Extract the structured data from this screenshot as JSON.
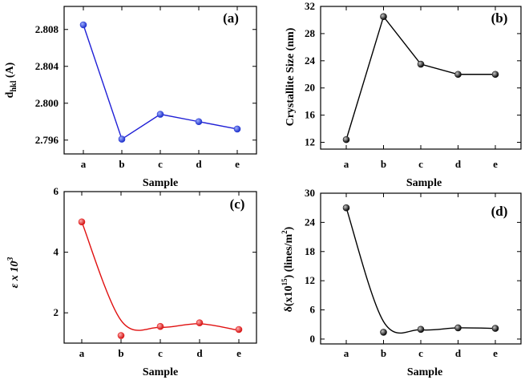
{
  "chart_data": [
    {
      "type": "line",
      "panel_label": "(a)",
      "categories": [
        "a",
        "b",
        "c",
        "d",
        "e"
      ],
      "values": [
        2.8085,
        2.7961,
        2.7988,
        2.798,
        2.7972
      ],
      "xlabel": "Sample",
      "ylabel_main": "d",
      "ylabel_sub": "hkl",
      "ylabel_unit": " (A)",
      "ylim": [
        2.7945,
        2.8105
      ],
      "yticks": [
        2.796,
        2.8,
        2.804,
        2.808
      ],
      "ytick_labels": [
        "2.796",
        "2.800",
        "2.804",
        "2.808"
      ],
      "line_color": "#1f1fd6",
      "marker_color": "#2a3bd8",
      "curve": "straight"
    },
    {
      "type": "line",
      "panel_label": "(b)",
      "categories": [
        "a",
        "b",
        "c",
        "d",
        "e"
      ],
      "values": [
        12.4,
        30.5,
        23.5,
        22.0,
        22.0
      ],
      "xlabel": "Sample",
      "ylabel": "Crystallite Size (nm)",
      "ylim": [
        11,
        32
      ],
      "yticks": [
        12,
        16,
        20,
        24,
        28,
        32
      ],
      "ytick_labels": [
        "12",
        "16",
        "20",
        "24",
        "28",
        "32"
      ],
      "line_color": "#000000",
      "marker_color": "#1a1a1a",
      "curve": "straight"
    },
    {
      "type": "line",
      "panel_label": "(c)",
      "categories": [
        "a",
        "b",
        "c",
        "d",
        "e"
      ],
      "values": [
        5.0,
        1.25,
        1.55,
        1.67,
        1.45
      ],
      "fit_values": [
        5.0,
        1.75,
        1.52,
        1.64,
        1.42
      ],
      "xlabel": "Sample",
      "ylabel_main": "ε x 10",
      "ylabel_sup": "3",
      "ylim": [
        1.0,
        6.0
      ],
      "yticks": [
        2,
        4,
        6
      ],
      "ytick_labels": [
        "2",
        "4",
        "6"
      ],
      "line_color": "#e01010",
      "marker_color": "#e82020",
      "curve": "smooth"
    },
    {
      "type": "line",
      "panel_label": "(d)",
      "categories": [
        "a",
        "b",
        "c",
        "d",
        "e"
      ],
      "values": [
        27.0,
        1.4,
        2.0,
        2.3,
        2.2
      ],
      "fit_values": [
        27.0,
        3.6,
        1.9,
        2.3,
        2.2
      ],
      "xlabel": "Sample",
      "ylabel_main": "δ(x10",
      "ylabel_sup1": "15",
      "ylabel_mid": ") (lines/m",
      "ylabel_sup2": "2",
      "ylabel_end": ")",
      "ylim": [
        -1,
        30
      ],
      "yticks": [
        0,
        6,
        12,
        18,
        24,
        30
      ],
      "ytick_labels": [
        "0",
        "6",
        "12",
        "18",
        "24",
        "30"
      ],
      "line_color": "#000000",
      "marker_color": "#1a1a1a",
      "curve": "smooth"
    }
  ]
}
